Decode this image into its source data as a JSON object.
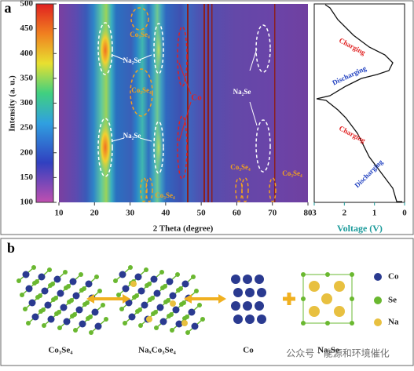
{
  "panel_a": {
    "label": "a",
    "y_label": "Intensity (a. u.)",
    "x_label": "2 Theta (degree)",
    "xlim": [
      10,
      80
    ],
    "xticks": [
      10,
      20,
      30,
      40,
      50,
      60,
      70,
      80
    ],
    "ylim": [
      100,
      500
    ],
    "yticks": [
      100,
      150,
      200,
      250,
      300,
      350,
      400,
      450,
      500
    ],
    "annotations": {
      "co3se4_top": "Co₃Se₄",
      "co3se4_mid": "Co₃Se₄",
      "na2se_top": "Na₂Se",
      "na2se_mid": "Na₂Se",
      "co3se4_low": "Co₃Se₄",
      "co": "Co",
      "na2se_right": "Na₂Se",
      "co3se4_r1": "Co₃Se₄",
      "co3se4_r2": "Co₃Se₄"
    },
    "voltage": {
      "x_label": "Voltage (V)",
      "xlim": [
        3,
        0
      ],
      "xticks": [
        3,
        2,
        1,
        0
      ],
      "charging_1": "Charging",
      "discharging_1": "Discharging",
      "charging_2": "Charging",
      "discharging_2": "Discharging"
    }
  },
  "panel_b": {
    "label": "b",
    "structures": [
      "Co₃Se₄",
      "NaₓCo₃Se₄",
      "Co",
      "Na₂Se"
    ],
    "legend": [
      "Co",
      "Se",
      "Na"
    ],
    "watermark": "公众号 · 能源和环境催化"
  }
}
